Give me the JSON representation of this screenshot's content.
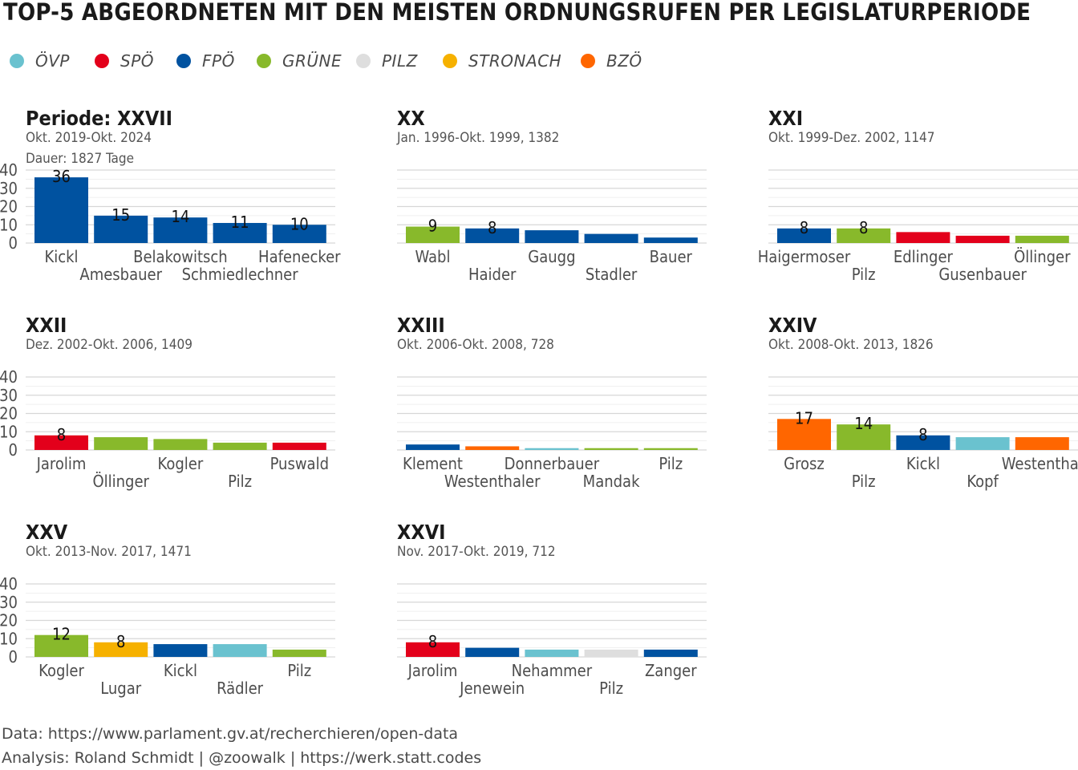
{
  "title": "TOP-5 ABGEORDNETEN MIT DEN MEISTEN ORDNUNGSRUFEN PER LEGISLATURPERIODE",
  "legend": [
    {
      "label": "ÖVP",
      "color": "#6ac2cf"
    },
    {
      "label": "SPÖ",
      "color": "#e3001b"
    },
    {
      "label": "FPÖ",
      "color": "#0052a0"
    },
    {
      "label": "GRÜNE",
      "color": "#88b92b"
    },
    {
      "label": "PILZ",
      "color": "#dedede"
    },
    {
      "label": "STRONACH",
      "color": "#f6b100"
    },
    {
      "label": "BZÖ",
      "color": "#ff6600"
    }
  ],
  "party_colors": {
    "ÖVP": "#6ac2cf",
    "SPÖ": "#e3001b",
    "FPÖ": "#0052a0",
    "GRÜNE": "#88b92b",
    "PILZ": "#dedede",
    "STRONACH": "#f6b100",
    "BZÖ": "#ff6600"
  },
  "chart_data": [
    {
      "type": "bar",
      "title": "Periode: XXVII",
      "subtitle_lines": [
        "Okt. 2019-Okt. 2024",
        "Dauer: 1827 Tage"
      ],
      "yticks": [
        0,
        10,
        20,
        30,
        40
      ],
      "ylim": [
        0,
        40
      ],
      "show_yaxis": true,
      "categories": [
        "Kickl",
        "Amesbauer",
        "Belakowitsch",
        "Schmiedlechner",
        "Hafenecker"
      ],
      "values": [
        36,
        15,
        14,
        11,
        10
      ],
      "parties": [
        "FPÖ",
        "FPÖ",
        "FPÖ",
        "FPÖ",
        "FPÖ"
      ],
      "labels": [
        "36",
        "15",
        "14",
        "11",
        "10"
      ]
    },
    {
      "type": "bar",
      "title": "XX",
      "subtitle_lines": [
        "Jan. 1996-Okt. 1999, 1382"
      ],
      "yticks": [
        0,
        10,
        20,
        30,
        40
      ],
      "ylim": [
        0,
        40
      ],
      "show_yaxis": false,
      "categories": [
        "Wabl",
        "Haider",
        "Gaugg",
        "Stadler",
        "Bauer"
      ],
      "values": [
        9,
        8,
        7,
        5,
        3
      ],
      "parties": [
        "GRÜNE",
        "FPÖ",
        "FPÖ",
        "FPÖ",
        "FPÖ"
      ],
      "labels": [
        "9",
        "8",
        "",
        "",
        ""
      ]
    },
    {
      "type": "bar",
      "title": "XXI",
      "subtitle_lines": [
        "Okt. 1999-Dez. 2002, 1147"
      ],
      "yticks": [
        0,
        10,
        20,
        30,
        40
      ],
      "ylim": [
        0,
        40
      ],
      "show_yaxis": false,
      "categories": [
        "Haigermoser",
        "Pilz",
        "Edlinger",
        "Gusenbauer",
        "Öllinger"
      ],
      "values": [
        8,
        8,
        6,
        4,
        4
      ],
      "parties": [
        "FPÖ",
        "GRÜNE",
        "SPÖ",
        "SPÖ",
        "GRÜNE"
      ],
      "labels": [
        "8",
        "8",
        "",
        "",
        ""
      ]
    },
    {
      "type": "bar",
      "title": "XXII",
      "subtitle_lines": [
        "Dez. 2002-Okt. 2006, 1409"
      ],
      "yticks": [
        0,
        10,
        20,
        30,
        40
      ],
      "ylim": [
        0,
        40
      ],
      "show_yaxis": true,
      "categories": [
        "Jarolim",
        "Öllinger",
        "Kogler",
        "Pilz",
        "Puswald"
      ],
      "values": [
        8,
        7,
        6,
        4,
        4
      ],
      "parties": [
        "SPÖ",
        "GRÜNE",
        "GRÜNE",
        "GRÜNE",
        "SPÖ"
      ],
      "labels": [
        "8",
        "",
        "",
        "",
        ""
      ]
    },
    {
      "type": "bar",
      "title": "XXIII",
      "subtitle_lines": [
        "Okt. 2006-Okt. 2008, 728"
      ],
      "yticks": [
        0,
        10,
        20,
        30,
        40
      ],
      "ylim": [
        0,
        40
      ],
      "show_yaxis": false,
      "categories": [
        "Klement",
        "Westenthaler",
        "Donnerbauer",
        "Mandak",
        "Pilz"
      ],
      "values": [
        3,
        2,
        1,
        1,
        1
      ],
      "parties": [
        "FPÖ",
        "BZÖ",
        "ÖVP",
        "GRÜNE",
        "GRÜNE"
      ],
      "labels": [
        "",
        "",
        "",
        "",
        ""
      ]
    },
    {
      "type": "bar",
      "title": "XXIV",
      "subtitle_lines": [
        "Okt. 2008-Okt. 2013, 1826"
      ],
      "yticks": [
        0,
        10,
        20,
        30,
        40
      ],
      "ylim": [
        0,
        40
      ],
      "show_yaxis": false,
      "categories": [
        "Grosz",
        "Pilz",
        "Kickl",
        "Kopf",
        "Westenthal"
      ],
      "values": [
        17,
        14,
        8,
        7,
        7
      ],
      "parties": [
        "BZÖ",
        "GRÜNE",
        "FPÖ",
        "ÖVP",
        "BZÖ"
      ],
      "labels": [
        "17",
        "14",
        "8",
        "",
        ""
      ]
    },
    {
      "type": "bar",
      "title": "XXV",
      "subtitle_lines": [
        "Okt. 2013-Nov. 2017, 1471"
      ],
      "yticks": [
        0,
        10,
        20,
        30,
        40
      ],
      "ylim": [
        0,
        40
      ],
      "show_yaxis": true,
      "categories": [
        "Kogler",
        "Lugar",
        "Kickl",
        "Rädler",
        "Pilz"
      ],
      "values": [
        12,
        8,
        7,
        7,
        4
      ],
      "parties": [
        "GRÜNE",
        "STRONACH",
        "FPÖ",
        "ÖVP",
        "GRÜNE"
      ],
      "labels": [
        "12",
        "8",
        "",
        "",
        ""
      ]
    },
    {
      "type": "bar",
      "title": "XXVI",
      "subtitle_lines": [
        "Nov. 2017-Okt. 2019, 712"
      ],
      "yticks": [
        0,
        10,
        20,
        30,
        40
      ],
      "ylim": [
        0,
        40
      ],
      "show_yaxis": false,
      "categories": [
        "Jarolim",
        "Jenewein",
        "Nehammer",
        "Pilz",
        "Zanger"
      ],
      "values": [
        8,
        5,
        4,
        4,
        4
      ],
      "parties": [
        "SPÖ",
        "FPÖ",
        "ÖVP",
        "PILZ",
        "FPÖ"
      ],
      "labels": [
        "8",
        "",
        "",
        "",
        ""
      ]
    }
  ],
  "footer": {
    "data_line": "Data: https://www.parlament.gv.at/recherchieren/open-data",
    "analysis_line": "Analysis: Roland Schmidt | @zoowalk | https://werk.statt.codes"
  }
}
